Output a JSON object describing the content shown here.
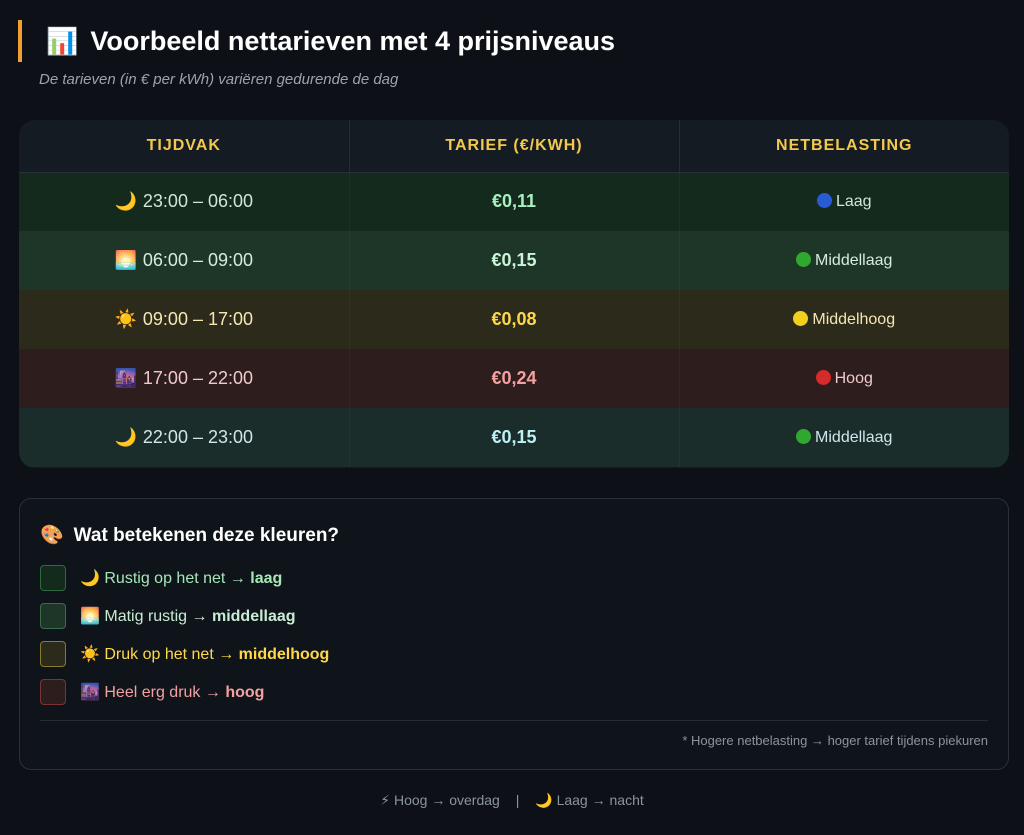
{
  "header": {
    "icon": "bar-chart-icon",
    "icon_glyph": "📊",
    "title": "Voorbeeld nettarieven met 4 prijsniveaus",
    "subtitle": "De tarieven (in € per kWh) variëren gedurende de dag"
  },
  "table": {
    "columns": [
      "Tijdvak",
      "Tarief (€/kWh)",
      "Netbelasting"
    ],
    "rows": [
      {
        "icon": "moon-icon",
        "glyph": "🌙",
        "time": "23:00 – 06:00",
        "price": "€0,11",
        "load_dot": "#2a5bd7",
        "load": "Laag"
      },
      {
        "icon": "sunrise-icon",
        "glyph": "🌅",
        "time": "06:00 – 09:00",
        "price": "€0,15",
        "load_dot": "#2fa82f",
        "load": "Middellaag"
      },
      {
        "icon": "sun-icon",
        "glyph": "☀️",
        "time": "09:00 – 17:00",
        "price": "€0,08",
        "load_dot": "#f2cf1e",
        "load": "Middelhoog"
      },
      {
        "icon": "city-dusk-icon",
        "glyph": "🌆",
        "time": "17:00 – 22:00",
        "price": "€0,24",
        "load_dot": "#d52b2b",
        "load": "Hoog"
      },
      {
        "icon": "moon-icon",
        "glyph": "🌙",
        "time": "22:00 – 23:00",
        "price": "€0,15",
        "load_dot": "#2fa82f",
        "load": "Middellaag"
      }
    ]
  },
  "legend": {
    "icon": "palette-icon",
    "icon_glyph": "🎨",
    "title": "Wat betekenen deze kleuren?",
    "items": [
      {
        "icon": "moon-icon",
        "glyph": "🌙",
        "text": "Rustig op het net →",
        "level": "laag",
        "swatch": "#142a1c",
        "border": "#2f6a3e",
        "color": "#a8e6b8"
      },
      {
        "icon": "sunrise-icon",
        "glyph": "🌅",
        "text": "Matig rustig →",
        "level": "middellaag",
        "swatch": "#1d3628",
        "border": "#3a6b4a",
        "color": "#c9ecd4"
      },
      {
        "icon": "sun-icon",
        "glyph": "☀️",
        "text": "Druk op het net →",
        "level": "middelhoog",
        "swatch": "#2c2a1a",
        "border": "#8a7a2c",
        "color": "#ffd84a"
      },
      {
        "icon": "city-dusk-icon",
        "glyph": "🌆",
        "text": "Heel erg druk →",
        "level": "hoog",
        "swatch": "#2d1d1d",
        "border": "#7a3434",
        "color": "#f4a0a0"
      }
    ],
    "note": "* Hogere netbelasting → hoger tarief tijdens piekuren"
  },
  "footer": {
    "left_icon": "lightning-icon",
    "left_glyph": "⚡",
    "left_text": "Hoog → overdag",
    "separator": "|",
    "right_icon": "moon-icon",
    "right_glyph": "🌙",
    "right_text": "Laag → nacht"
  }
}
